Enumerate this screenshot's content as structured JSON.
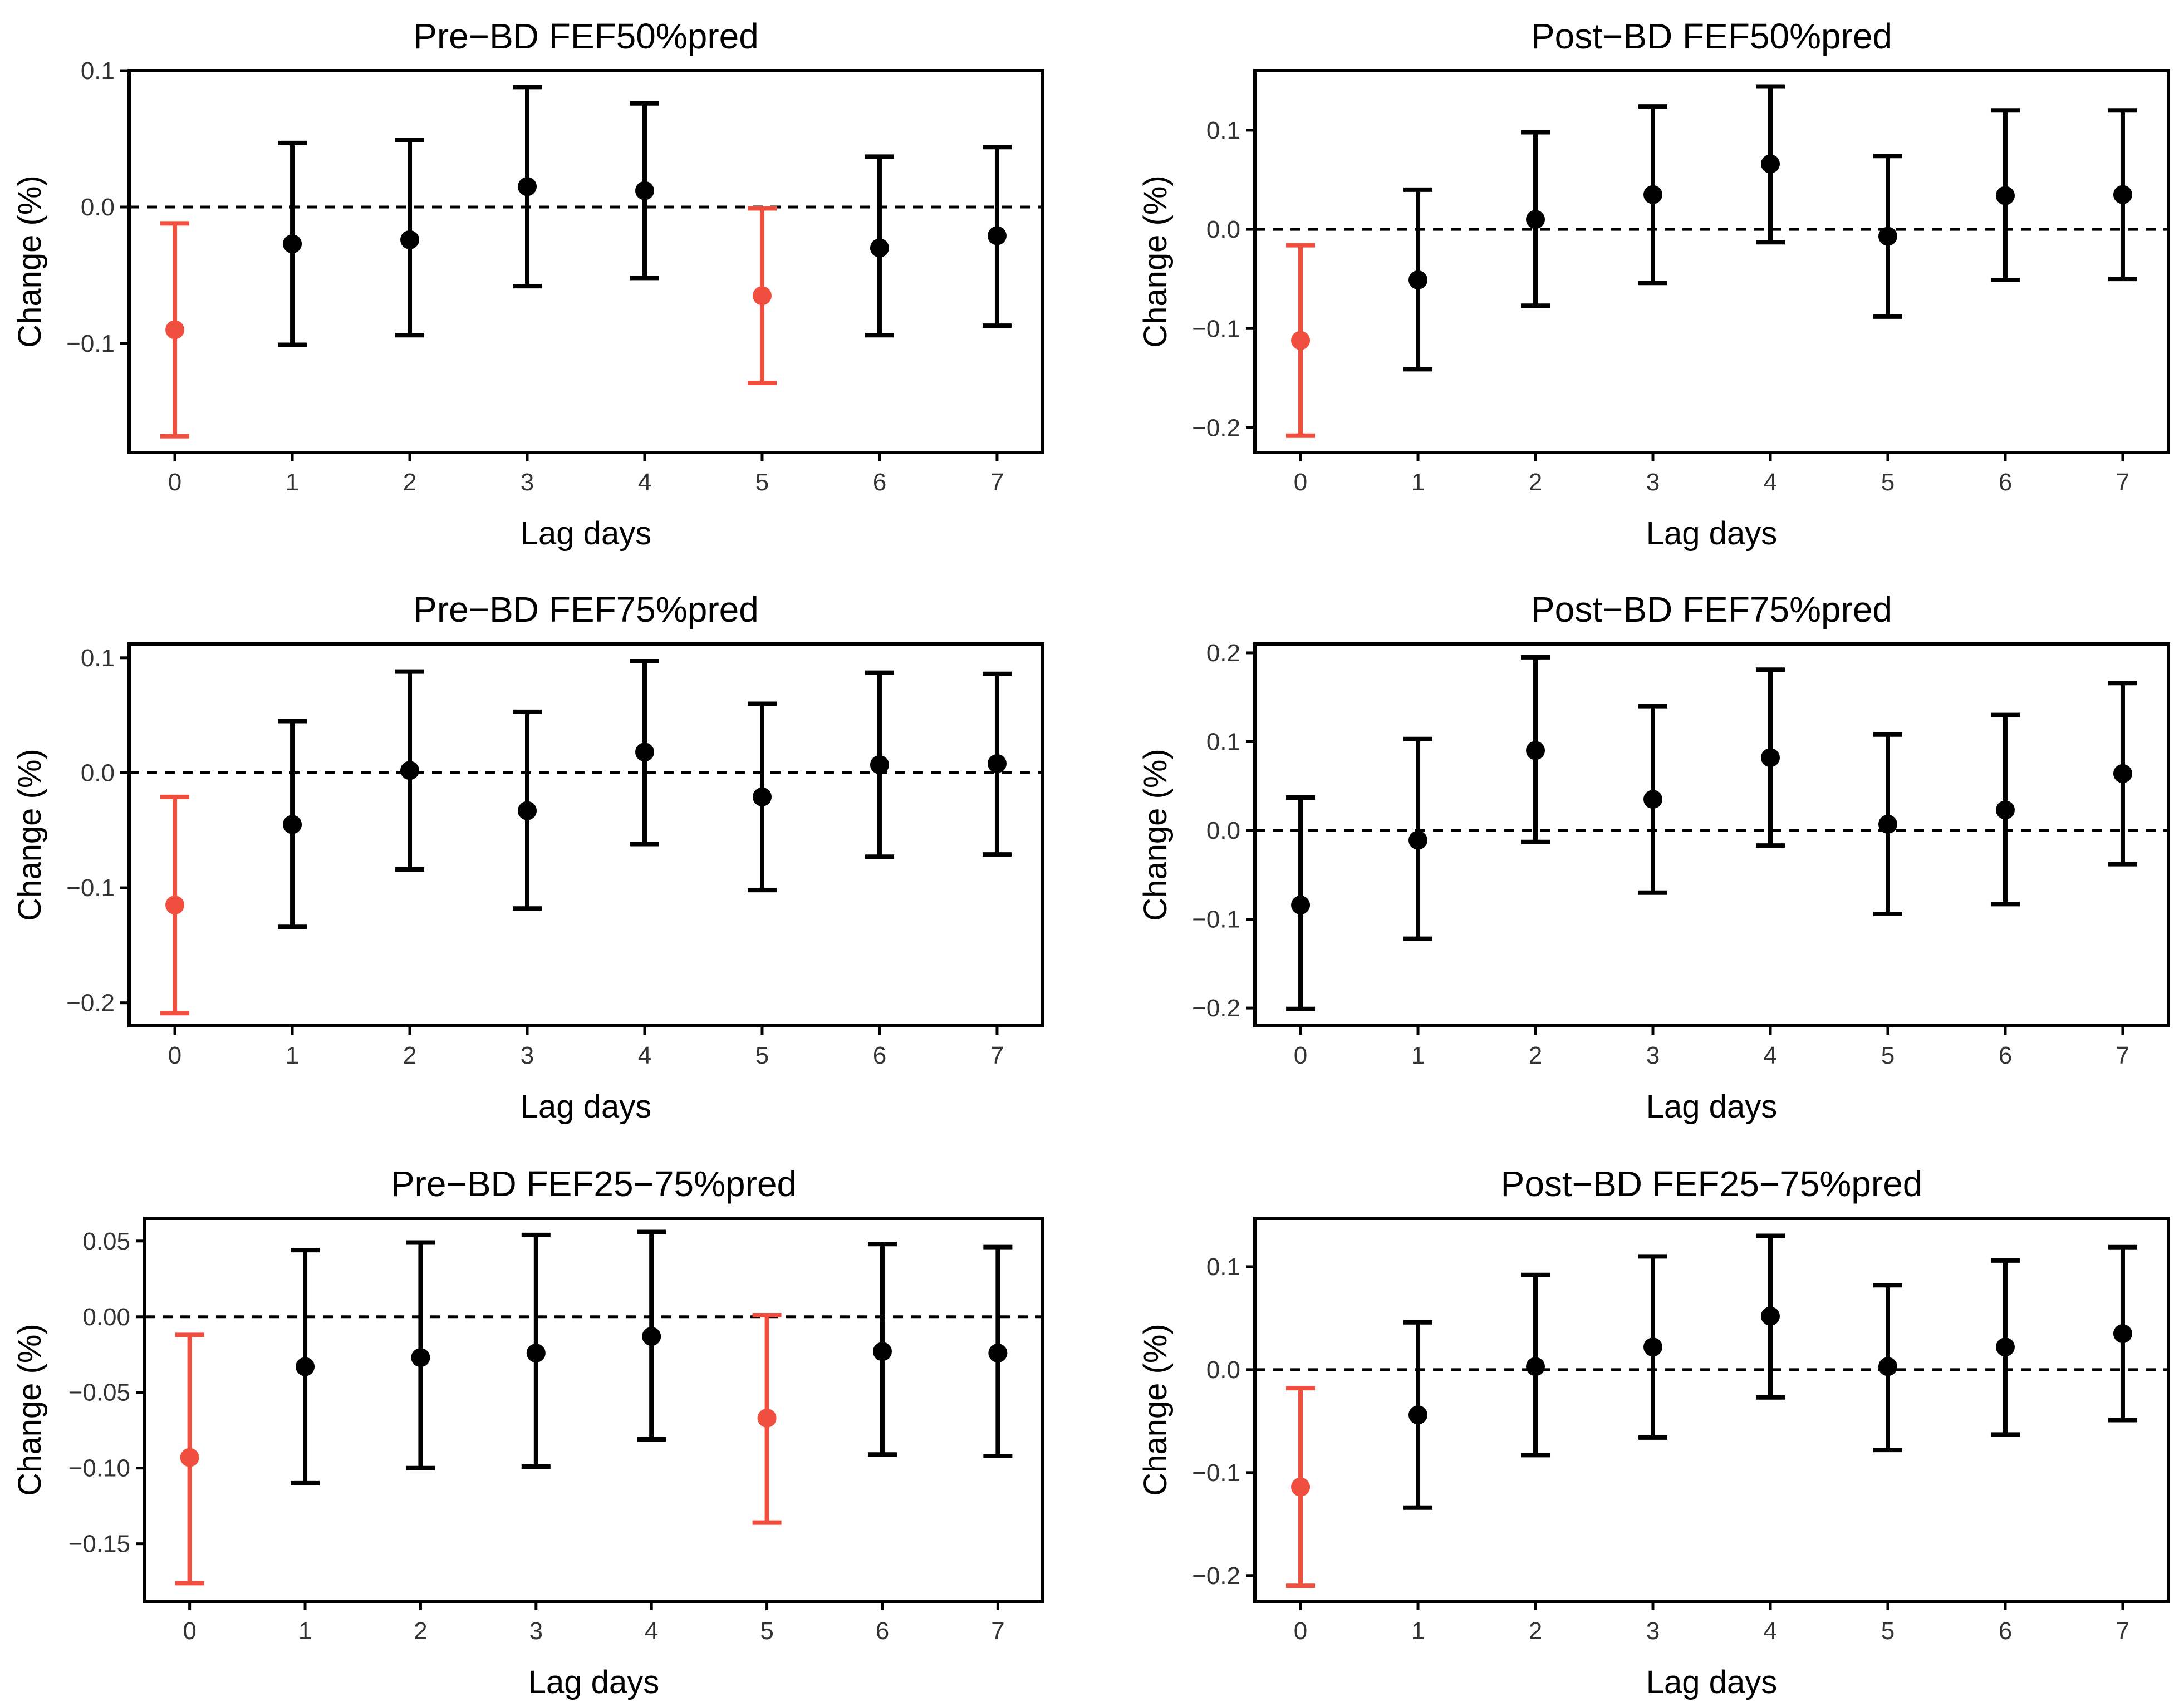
{
  "chart_data": [
    {
      "type": "scatter",
      "title": "Pre−BD FEF50%pred",
      "xlabel": "Lag days",
      "ylabel": "Change (%)",
      "x": [
        0,
        1,
        2,
        3,
        4,
        5,
        6,
        7
      ],
      "ylim": [
        -0.18,
        0.1
      ],
      "yticks": [
        0.1,
        0.0,
        -0.1
      ],
      "ytick_labels": [
        "0.1",
        "0.0",
        "−0.1"
      ],
      "reference_line": 0,
      "series": [
        {
          "name": "estimate",
          "values": [
            -0.09,
            -0.027,
            -0.024,
            0.015,
            0.012,
            -0.065,
            -0.03,
            -0.021
          ],
          "lower": [
            -0.168,
            -0.101,
            -0.094,
            -0.058,
            -0.052,
            -0.129,
            -0.094,
            -0.087
          ],
          "upper": [
            -0.012,
            0.047,
            0.049,
            0.088,
            0.076,
            -0.001,
            0.037,
            0.044
          ],
          "significant": [
            true,
            false,
            false,
            false,
            false,
            true,
            false,
            false
          ]
        }
      ]
    },
    {
      "type": "scatter",
      "title": "Post−BD FEF50%pred",
      "xlabel": "Lag days",
      "ylabel": "Change (%)",
      "x": [
        0,
        1,
        2,
        3,
        4,
        5,
        6,
        7
      ],
      "ylim": [
        -0.225,
        0.16
      ],
      "yticks": [
        0.1,
        0.0,
        -0.1,
        -0.2
      ],
      "ytick_labels": [
        "0.1",
        "0.0",
        "−0.1",
        "−0.2"
      ],
      "reference_line": 0,
      "series": [
        {
          "name": "estimate",
          "values": [
            -0.112,
            -0.051,
            0.01,
            0.035,
            0.066,
            -0.007,
            0.034,
            0.035
          ],
          "lower": [
            -0.208,
            -0.141,
            -0.077,
            -0.054,
            -0.013,
            -0.088,
            -0.051,
            -0.05
          ],
          "upper": [
            -0.016,
            0.04,
            0.098,
            0.124,
            0.144,
            0.074,
            0.12,
            0.12
          ],
          "significant": [
            true,
            false,
            false,
            false,
            false,
            false,
            false,
            false
          ]
        }
      ]
    },
    {
      "type": "scatter",
      "title": "Pre−BD FEF75%pred",
      "xlabel": "Lag days",
      "ylabel": "Change (%)",
      "x": [
        0,
        1,
        2,
        3,
        4,
        5,
        6,
        7
      ],
      "ylim": [
        -0.22,
        0.112
      ],
      "yticks": [
        0.1,
        0.0,
        -0.1,
        -0.2
      ],
      "ytick_labels": [
        "0.1",
        "0.0",
        "−0.1",
        "−0.2"
      ],
      "reference_line": 0,
      "series": [
        {
          "name": "estimate",
          "values": [
            -0.115,
            -0.045,
            0.002,
            -0.033,
            0.018,
            -0.021,
            0.007,
            0.008
          ],
          "lower": [
            -0.209,
            -0.134,
            -0.084,
            -0.118,
            -0.062,
            -0.102,
            -0.073,
            -0.071
          ],
          "upper": [
            -0.021,
            0.045,
            0.088,
            0.053,
            0.097,
            0.06,
            0.087,
            0.086
          ],
          "significant": [
            true,
            false,
            false,
            false,
            false,
            false,
            false,
            false
          ]
        }
      ]
    },
    {
      "type": "scatter",
      "title": "Post−BD FEF75%pred",
      "xlabel": "Lag days",
      "ylabel": "Change (%)",
      "x": [
        0,
        1,
        2,
        3,
        4,
        5,
        6,
        7
      ],
      "ylim": [
        -0.22,
        0.21
      ],
      "yticks": [
        0.2,
        0.1,
        0.0,
        -0.1,
        -0.2
      ],
      "ytick_labels": [
        "0.2",
        "0.1",
        "0.0",
        "−0.1",
        "−0.2"
      ],
      "reference_line": 0,
      "series": [
        {
          "name": "estimate",
          "values": [
            -0.084,
            -0.011,
            0.09,
            0.035,
            0.082,
            0.007,
            0.023,
            0.064
          ],
          "lower": [
            -0.201,
            -0.122,
            -0.013,
            -0.07,
            -0.017,
            -0.094,
            -0.083,
            -0.038
          ],
          "upper": [
            0.037,
            0.103,
            0.195,
            0.14,
            0.181,
            0.108,
            0.13,
            0.166
          ],
          "significant": [
            false,
            false,
            false,
            false,
            false,
            false,
            false,
            false
          ]
        }
      ]
    },
    {
      "type": "scatter",
      "title": "Pre−BD FEF25−75%pred",
      "xlabel": "Lag days",
      "ylabel": "Change (%)",
      "x": [
        0,
        1,
        2,
        3,
        4,
        5,
        6,
        7
      ],
      "ylim": [
        -0.188,
        0.065
      ],
      "yticks": [
        0.05,
        0.0,
        -0.05,
        -0.1,
        -0.15
      ],
      "ytick_labels": [
        "0.05",
        "0.00",
        "−0.05",
        "−0.10",
        "−0.15"
      ],
      "reference_line": 0,
      "series": [
        {
          "name": "estimate",
          "values": [
            -0.093,
            -0.033,
            -0.027,
            -0.024,
            -0.013,
            -0.067,
            -0.023,
            -0.024
          ],
          "lower": [
            -0.176,
            -0.11,
            -0.1,
            -0.099,
            -0.081,
            -0.136,
            -0.091,
            -0.092
          ],
          "upper": [
            -0.012,
            0.044,
            0.049,
            0.054,
            0.056,
            0.001,
            0.048,
            0.046
          ],
          "significant": [
            true,
            false,
            false,
            false,
            false,
            true,
            false,
            false
          ]
        }
      ]
    },
    {
      "type": "scatter",
      "title": "Post−BD FEF25−75%pred",
      "xlabel": "Lag days",
      "ylabel": "Change (%)",
      "x": [
        0,
        1,
        2,
        3,
        4,
        5,
        6,
        7
      ],
      "ylim": [
        -0.225,
        0.147
      ],
      "yticks": [
        0.1,
        0.0,
        -0.1,
        -0.2
      ],
      "ytick_labels": [
        "0.1",
        "0.0",
        "−0.1",
        "−0.2"
      ],
      "reference_line": 0,
      "series": [
        {
          "name": "estimate",
          "values": [
            -0.114,
            -0.044,
            0.003,
            0.022,
            0.052,
            0.003,
            0.022,
            0.035
          ],
          "lower": [
            -0.21,
            -0.134,
            -0.083,
            -0.066,
            -0.027,
            -0.078,
            -0.063,
            -0.049
          ],
          "upper": [
            -0.018,
            0.046,
            0.092,
            0.11,
            0.13,
            0.082,
            0.106,
            0.119
          ],
          "significant": [
            true,
            false,
            false,
            false,
            false,
            false,
            false,
            false
          ]
        }
      ]
    }
  ],
  "colors": {
    "significant": "#f04e3e",
    "nonsignificant": "#000000",
    "reference_line": "#000000",
    "axis": "#000000",
    "tick_text": "#333333"
  }
}
